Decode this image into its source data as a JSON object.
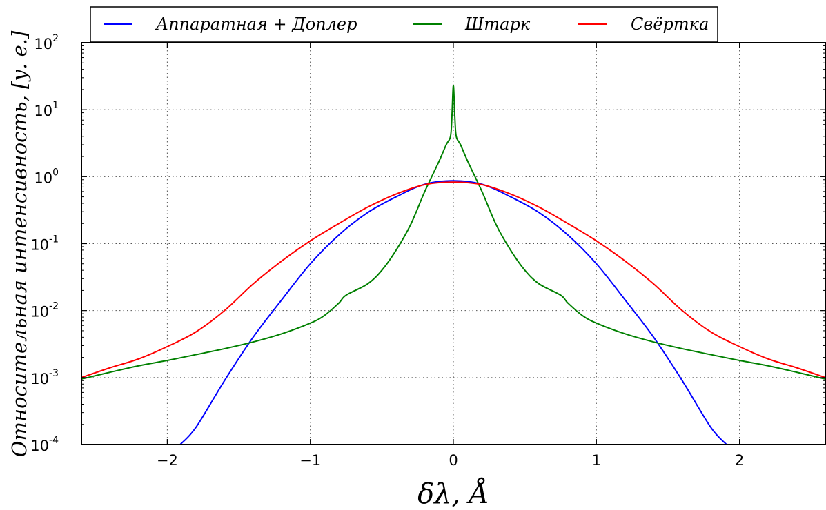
{
  "chart_data": {
    "type": "line",
    "xlabel": "δλ,  Å",
    "ylabel": "Относительная интенсивность,  [у. е.]",
    "xlim": [
      -2.6,
      2.6
    ],
    "ylim": [
      0.0001,
      100
    ],
    "yscale": "log",
    "grid": true,
    "legend": "top",
    "x_ticks": [
      -2,
      -1,
      0,
      1,
      2
    ],
    "x_tick_labels": [
      "−2",
      "−1",
      "0",
      "1",
      "2"
    ],
    "y_ticks": [
      0.0001,
      0.001,
      0.01,
      0.1,
      1,
      10,
      100
    ],
    "y_tick_labels": [
      {
        "base": "10",
        "exp": "-4"
      },
      {
        "base": "10",
        "exp": "-3"
      },
      {
        "base": "10",
        "exp": "-2"
      },
      {
        "base": "10",
        "exp": "-1"
      },
      {
        "base": "10",
        "exp": "0"
      },
      {
        "base": "10",
        "exp": "1"
      },
      {
        "base": "10",
        "exp": "2"
      }
    ],
    "series": [
      {
        "name": "Аппаратная + Доплер",
        "color": "#0000ff",
        "x": [
          -1.91,
          -1.8,
          -1.6,
          -1.4,
          -1.2,
          -1.0,
          -0.8,
          -0.6,
          -0.4,
          -0.2,
          0.0,
          0.2,
          0.4,
          0.6,
          0.8,
          1.0,
          1.2,
          1.4,
          1.6,
          1.8,
          1.91
        ],
        "y": [
          0.0001,
          0.00018,
          0.0009,
          0.004,
          0.0145,
          0.05,
          0.135,
          0.29,
          0.5,
          0.77,
          0.87,
          0.77,
          0.5,
          0.29,
          0.135,
          0.05,
          0.0145,
          0.004,
          0.0009,
          0.00018,
          0.0001
        ]
      },
      {
        "name": "Штарк",
        "color": "#008000",
        "x": [
          -2.6,
          -2.4,
          -2.2,
          -2.0,
          -1.8,
          -1.6,
          -1.4,
          -1.2,
          -1.0,
          -0.9,
          -0.8,
          -0.75,
          -0.6,
          -0.5,
          -0.4,
          -0.3,
          -0.2,
          -0.1,
          -0.05,
          -0.02,
          -0.01,
          0.0,
          0.01,
          0.02,
          0.05,
          0.1,
          0.2,
          0.3,
          0.4,
          0.5,
          0.6,
          0.75,
          0.8,
          0.9,
          1.0,
          1.2,
          1.4,
          1.6,
          1.8,
          2.0,
          2.2,
          2.4,
          2.6
        ],
        "y": [
          0.00095,
          0.0012,
          0.0015,
          0.0018,
          0.0022,
          0.0027,
          0.0034,
          0.0045,
          0.0065,
          0.0085,
          0.013,
          0.017,
          0.025,
          0.04,
          0.08,
          0.19,
          0.6,
          1.7,
          3.0,
          4.0,
          8.0,
          23.0,
          8.0,
          4.0,
          3.0,
          1.7,
          0.6,
          0.19,
          0.08,
          0.04,
          0.025,
          0.017,
          0.013,
          0.0085,
          0.0065,
          0.0045,
          0.0034,
          0.0027,
          0.0022,
          0.0018,
          0.0015,
          0.0012,
          0.00095
        ]
      },
      {
        "name": "Свёртка",
        "color": "#ff0000",
        "x": [
          -2.6,
          -2.4,
          -2.2,
          -2.0,
          -1.8,
          -1.6,
          -1.4,
          -1.2,
          -1.0,
          -0.8,
          -0.6,
          -0.4,
          -0.2,
          0.0,
          0.2,
          0.4,
          0.6,
          0.8,
          1.0,
          1.2,
          1.4,
          1.6,
          1.8,
          2.0,
          2.2,
          2.4,
          2.6
        ],
        "y": [
          0.001,
          0.0014,
          0.0019,
          0.0029,
          0.0048,
          0.01,
          0.025,
          0.055,
          0.11,
          0.2,
          0.35,
          0.55,
          0.76,
          0.83,
          0.76,
          0.55,
          0.35,
          0.2,
          0.11,
          0.055,
          0.025,
          0.01,
          0.0048,
          0.0029,
          0.0019,
          0.0014,
          0.001
        ]
      }
    ]
  }
}
